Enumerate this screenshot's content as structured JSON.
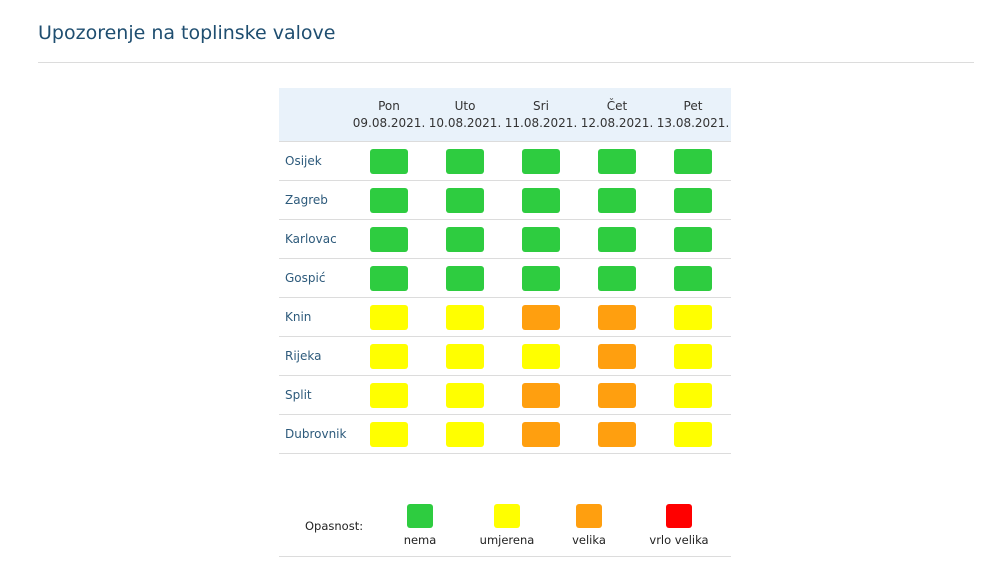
{
  "page": {
    "title": "Upozorenje na toplinske valove"
  },
  "table": {
    "days": [
      {
        "name": "Pon",
        "date": "09.08.2021."
      },
      {
        "name": "Uto",
        "date": "10.08.2021."
      },
      {
        "name": "Sri",
        "date": "11.08.2021."
      },
      {
        "name": "Čet",
        "date": "12.08.2021."
      },
      {
        "name": "Pet",
        "date": "13.08.2021."
      }
    ],
    "rows": [
      {
        "city": "Osijek",
        "levels": [
          "nema",
          "nema",
          "nema",
          "nema",
          "nema"
        ]
      },
      {
        "city": "Zagreb",
        "levels": [
          "nema",
          "nema",
          "nema",
          "nema",
          "nema"
        ]
      },
      {
        "city": "Karlovac",
        "levels": [
          "nema",
          "nema",
          "nema",
          "nema",
          "nema"
        ]
      },
      {
        "city": "Gospić",
        "levels": [
          "nema",
          "nema",
          "nema",
          "nema",
          "nema"
        ]
      },
      {
        "city": "Knin",
        "levels": [
          "umjerena",
          "umjerena",
          "velika",
          "velika",
          "umjerena"
        ]
      },
      {
        "city": "Rijeka",
        "levels": [
          "umjerena",
          "umjerena",
          "umjerena",
          "velika",
          "umjerena"
        ]
      },
      {
        "city": "Split",
        "levels": [
          "umjerena",
          "umjerena",
          "velika",
          "velika",
          "umjerena"
        ]
      },
      {
        "city": "Dubrovnik",
        "levels": [
          "umjerena",
          "umjerena",
          "velika",
          "velika",
          "umjerena"
        ]
      }
    ]
  },
  "legend": {
    "label": "Opasnost:",
    "items": [
      {
        "key": "nema",
        "label": "nema",
        "color": "#2ecc40"
      },
      {
        "key": "umjerena",
        "label": "umjerena",
        "color": "#ffff00"
      },
      {
        "key": "velika",
        "label": "velika",
        "color": "#ff9f0f"
      },
      {
        "key": "vrlo-velika",
        "label": "vrlo velika",
        "color": "#ff0000"
      }
    ]
  }
}
